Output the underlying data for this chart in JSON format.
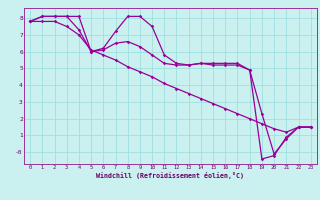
{
  "xlabel": "Windchill (Refroidissement éolien,°C)",
  "bg_color": "#caf0f0",
  "grid_color": "#99dddd",
  "line_color": "#990099",
  "spine_color": "#993399",
  "tick_color": "#660066",
  "x_ticks": [
    0,
    1,
    2,
    3,
    4,
    5,
    6,
    7,
    8,
    9,
    10,
    11,
    12,
    13,
    14,
    15,
    16,
    17,
    18,
    19,
    20,
    21,
    22,
    23
  ],
  "y_ticks": [
    0,
    1,
    2,
    3,
    4,
    5,
    6,
    7,
    8
  ],
  "y_tick_labels": [
    "-0",
    "1",
    "2",
    "3",
    "4",
    "5",
    "6",
    "7",
    "8"
  ],
  "ylim": [
    -0.7,
    8.6
  ],
  "xlim": [
    -0.5,
    23.5
  ],
  "line1_x": [
    0,
    1,
    2,
    3,
    4,
    5,
    6,
    7,
    8,
    9,
    10,
    11,
    12,
    13,
    14,
    15,
    16,
    17,
    18,
    19,
    20,
    21,
    22,
    23
  ],
  "line1_y": [
    7.8,
    8.1,
    8.1,
    8.1,
    8.1,
    6.0,
    6.2,
    7.2,
    8.1,
    8.1,
    7.5,
    5.8,
    5.3,
    5.2,
    5.3,
    5.3,
    5.3,
    5.3,
    4.9,
    -0.4,
    -0.2,
    0.9,
    1.5,
    1.5
  ],
  "line2_x": [
    0,
    1,
    2,
    3,
    4,
    5,
    6,
    7,
    8,
    9,
    10,
    11,
    12,
    13,
    14,
    15,
    16,
    17,
    18,
    19,
    20,
    21,
    22,
    23
  ],
  "line2_y": [
    7.8,
    8.1,
    8.1,
    8.1,
    7.3,
    6.0,
    6.1,
    6.5,
    6.6,
    6.3,
    5.8,
    5.3,
    5.2,
    5.2,
    5.3,
    5.2,
    5.2,
    5.2,
    4.9,
    2.3,
    -0.1,
    0.8,
    1.5,
    1.5
  ],
  "line3_x": [
    0,
    1,
    2,
    3,
    4,
    5,
    6,
    7,
    8,
    9,
    10,
    11,
    12,
    13,
    14,
    15,
    16,
    17,
    18,
    19,
    20,
    21,
    22,
    23
  ],
  "line3_y": [
    7.8,
    7.8,
    7.8,
    7.5,
    7.0,
    6.1,
    5.8,
    5.5,
    5.1,
    4.8,
    4.5,
    4.1,
    3.8,
    3.5,
    3.2,
    2.9,
    2.6,
    2.3,
    2.0,
    1.7,
    1.4,
    1.2,
    1.5,
    1.5
  ]
}
